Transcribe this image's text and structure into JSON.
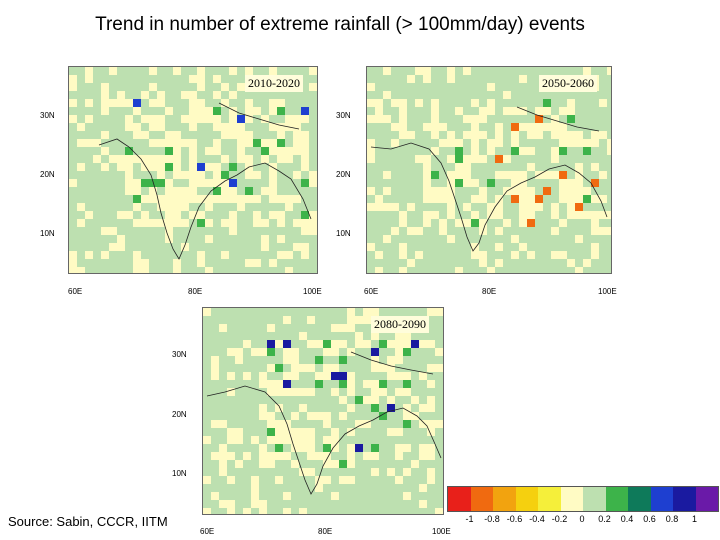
{
  "title": "Trend in number of extreme rainfall (> 100mm/day) events",
  "source": "Source:  Sabin, CCCR, IITM",
  "panels": [
    {
      "label": "2010-2020",
      "yticks": [
        "30N",
        "20N",
        "10N"
      ],
      "xticks": [
        "60E",
        "80E",
        "100E"
      ]
    },
    {
      "label": "2050-2060",
      "yticks": [
        "30N",
        "20N",
        "10N"
      ],
      "xticks": [
        "60E",
        "80E",
        "100E"
      ]
    },
    {
      "label": "2080-2090",
      "yticks": [
        "30N",
        "20N",
        "10N"
      ],
      "xticks": [
        "60E",
        "80E",
        "100E"
      ]
    }
  ],
  "colorbar": {
    "labels": [
      "-1",
      "-0.8",
      "-0.6",
      "-0.4",
      "-0.2",
      "0",
      "0.2",
      "0.4",
      "0.6",
      "0.8",
      "1"
    ],
    "colors": [
      "#e8201a",
      "#f06a10",
      "#f2a30f",
      "#f5d00f",
      "#f5ef3a",
      "#fffbc4",
      "#bde0b0",
      "#3db34a",
      "#0e7a5a",
      "#1e3fd0",
      "#1a1aa0",
      "#6a1aa8"
    ]
  }
}
